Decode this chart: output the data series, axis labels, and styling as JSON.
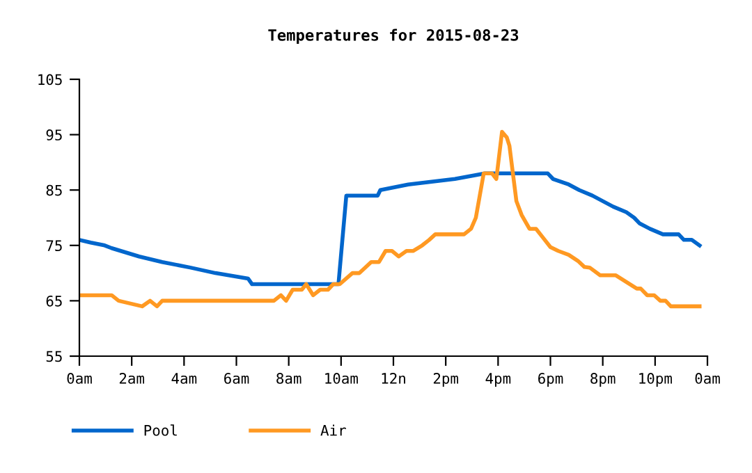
{
  "chart_data": {
    "type": "line",
    "title": "Temperatures for 2015-08-23",
    "legend": "bottom",
    "grid": false,
    "line_style": "solid",
    "marker": "none",
    "xlim": [
      "2015-08-23T00:00",
      "2015-08-24T00:00"
    ],
    "ylim": [
      55,
      105
    ],
    "xticks": [
      {
        "value": "2015-08-23T00:00",
        "label": "0am"
      },
      {
        "value": "2015-08-23T02:00",
        "label": "2am"
      },
      {
        "value": "2015-08-23T04:00",
        "label": "4am"
      },
      {
        "value": "2015-08-23T06:00",
        "label": "6am"
      },
      {
        "value": "2015-08-23T08:00",
        "label": "8am"
      },
      {
        "value": "2015-08-23T10:00",
        "label": "10am"
      },
      {
        "value": "2015-08-23T12:00",
        "label": "12n"
      },
      {
        "value": "2015-08-23T14:00",
        "label": "2pm"
      },
      {
        "value": "2015-08-23T16:00",
        "label": "4pm"
      },
      {
        "value": "2015-08-23T18:00",
        "label": "6pm"
      },
      {
        "value": "2015-08-23T20:00",
        "label": "8pm"
      },
      {
        "value": "2015-08-23T22:00",
        "label": "10pm"
      },
      {
        "value": "2015-08-24T00:00",
        "label": "0am"
      }
    ],
    "yticks": [
      55,
      65,
      75,
      85,
      95,
      105
    ],
    "series": [
      {
        "name": "Pool",
        "color": "#0066cc",
        "x": [
          "2015-08-23T00:00",
          "2015-08-23T00:26",
          "2015-08-23T00:58",
          "2015-08-23T01:14",
          "2015-08-23T01:35",
          "2015-08-23T02:17",
          "2015-08-23T03:10",
          "2015-08-23T04:14",
          "2015-08-23T05:12",
          "2015-08-23T06:27",
          "2015-08-23T06:36",
          "2015-08-23T09:54",
          "2015-08-23T10:12",
          "2015-08-23T11:24",
          "2015-08-23T11:30",
          "2015-08-23T12:34",
          "2015-08-23T14:21",
          "2015-08-23T15:30",
          "2015-08-23T17:54",
          "2015-08-23T18:06",
          "2015-08-23T18:42",
          "2015-08-23T19:06",
          "2015-08-23T19:36",
          "2015-08-23T20:00",
          "2015-08-23T20:24",
          "2015-08-23T20:54",
          "2015-08-23T21:12",
          "2015-08-23T21:24",
          "2015-08-23T21:48",
          "2015-08-23T22:18",
          "2015-08-23T22:54",
          "2015-08-23T23:06",
          "2015-08-23T23:24",
          "2015-08-23T23:42"
        ],
        "values": [
          76,
          75.5,
          75,
          74.5,
          74,
          73,
          72,
          71,
          70,
          69,
          68,
          68,
          84,
          84,
          85,
          86,
          87,
          88,
          88,
          87,
          86,
          85,
          84,
          83,
          82,
          81,
          80,
          79,
          78,
          77,
          77,
          76,
          76,
          75
        ]
      },
      {
        "name": "Air",
        "color": "#ff9922",
        "x": [
          "2015-08-23T00:00",
          "2015-08-23T01:14",
          "2015-08-23T01:30",
          "2015-08-23T02:24",
          "2015-08-23T02:42",
          "2015-08-23T02:58",
          "2015-08-23T03:10",
          "2015-08-23T07:26",
          "2015-08-23T07:42",
          "2015-08-23T07:54",
          "2015-08-23T08:09",
          "2015-08-23T08:30",
          "2015-08-23T08:40",
          "2015-08-23T08:56",
          "2015-08-23T09:12",
          "2015-08-23T09:30",
          "2015-08-23T09:42",
          "2015-08-23T09:57",
          "2015-08-23T10:26",
          "2015-08-23T10:42",
          "2015-08-23T11:09",
          "2015-08-23T11:27",
          "2015-08-23T11:42",
          "2015-08-23T11:57",
          "2015-08-23T12:12",
          "2015-08-23T12:30",
          "2015-08-23T12:45",
          "2015-08-23T13:06",
          "2015-08-23T13:22",
          "2015-08-23T13:36",
          "2015-08-23T14:42",
          "2015-08-23T14:58",
          "2015-08-23T15:09",
          "2015-08-23T15:18",
          "2015-08-23T15:27",
          "2015-08-23T15:46",
          "2015-08-23T15:56",
          "2015-08-23T16:09",
          "2015-08-23T16:20",
          "2015-08-23T16:26",
          "2015-08-23T16:34",
          "2015-08-23T16:42",
          "2015-08-23T16:54",
          "2015-08-23T17:12",
          "2015-08-23T17:27",
          "2015-08-23T17:42",
          "2015-08-23T18:00",
          "2015-08-23T18:18",
          "2015-08-23T18:42",
          "2015-08-23T19:03",
          "2015-08-23T19:18",
          "2015-08-23T19:30",
          "2015-08-23T19:54",
          "2015-08-23T20:30",
          "2015-08-23T20:54",
          "2015-08-23T21:18",
          "2015-08-23T21:27",
          "2015-08-23T21:42",
          "2015-08-23T21:58",
          "2015-08-23T22:12",
          "2015-08-23T22:24",
          "2015-08-23T22:36",
          "2015-08-23T23:42"
        ],
        "values": [
          66,
          66,
          65,
          64,
          65,
          64,
          65,
          65,
          66,
          65,
          67,
          67,
          68,
          66,
          67,
          67,
          68,
          68,
          70,
          70,
          72,
          72,
          74,
          74,
          73,
          74,
          74,
          75,
          76,
          77,
          77,
          78,
          80,
          84,
          88,
          88,
          87,
          95.5,
          94.5,
          93,
          88,
          83,
          80.5,
          78,
          78,
          76.5,
          74.7,
          74,
          73.3,
          72.2,
          71.1,
          71,
          69.6,
          69.6,
          68.4,
          67.2,
          67.2,
          66,
          66,
          65,
          65,
          64,
          64
        ]
      }
    ]
  }
}
